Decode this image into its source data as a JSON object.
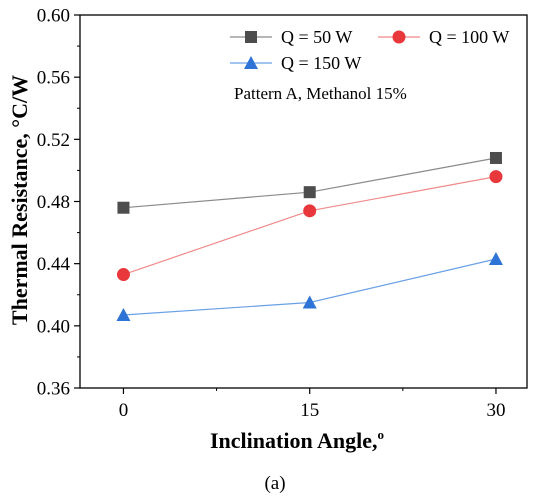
{
  "chart_data": {
    "type": "line",
    "panel_label": "(a)",
    "xlabel": "Inclination Angle,",
    "xlabel_superscript": "o",
    "ylabel": "Thermal Resistance, °C/W",
    "x": [
      0,
      15,
      30
    ],
    "x_ticks": [
      "0",
      "15",
      "30"
    ],
    "xlim": [
      -3.5,
      32.5
    ],
    "ylim": [
      0.36,
      0.6
    ],
    "y_ticks": [
      "0.36",
      "0.40",
      "0.44",
      "0.48",
      "0.52",
      "0.56",
      "0.60"
    ],
    "annotation": "Pattern A, Methanol 15%",
    "legend_position": "top-right",
    "grid": false,
    "series": [
      {
        "name": "Q = 50 W",
        "values": [
          0.476,
          0.486,
          0.508
        ],
        "color": "#4d4d4d",
        "line_color": "#8a8a8a",
        "marker": "square"
      },
      {
        "name": "Q = 100 W",
        "values": [
          0.433,
          0.474,
          0.496
        ],
        "color": "#e8383b",
        "line_color": "#f08a8a",
        "marker": "circle"
      },
      {
        "name": "Q = 150 W",
        "values": [
          0.407,
          0.415,
          0.443
        ],
        "color": "#2e74d6",
        "line_color": "#6aa0e6",
        "marker": "triangle"
      }
    ]
  }
}
